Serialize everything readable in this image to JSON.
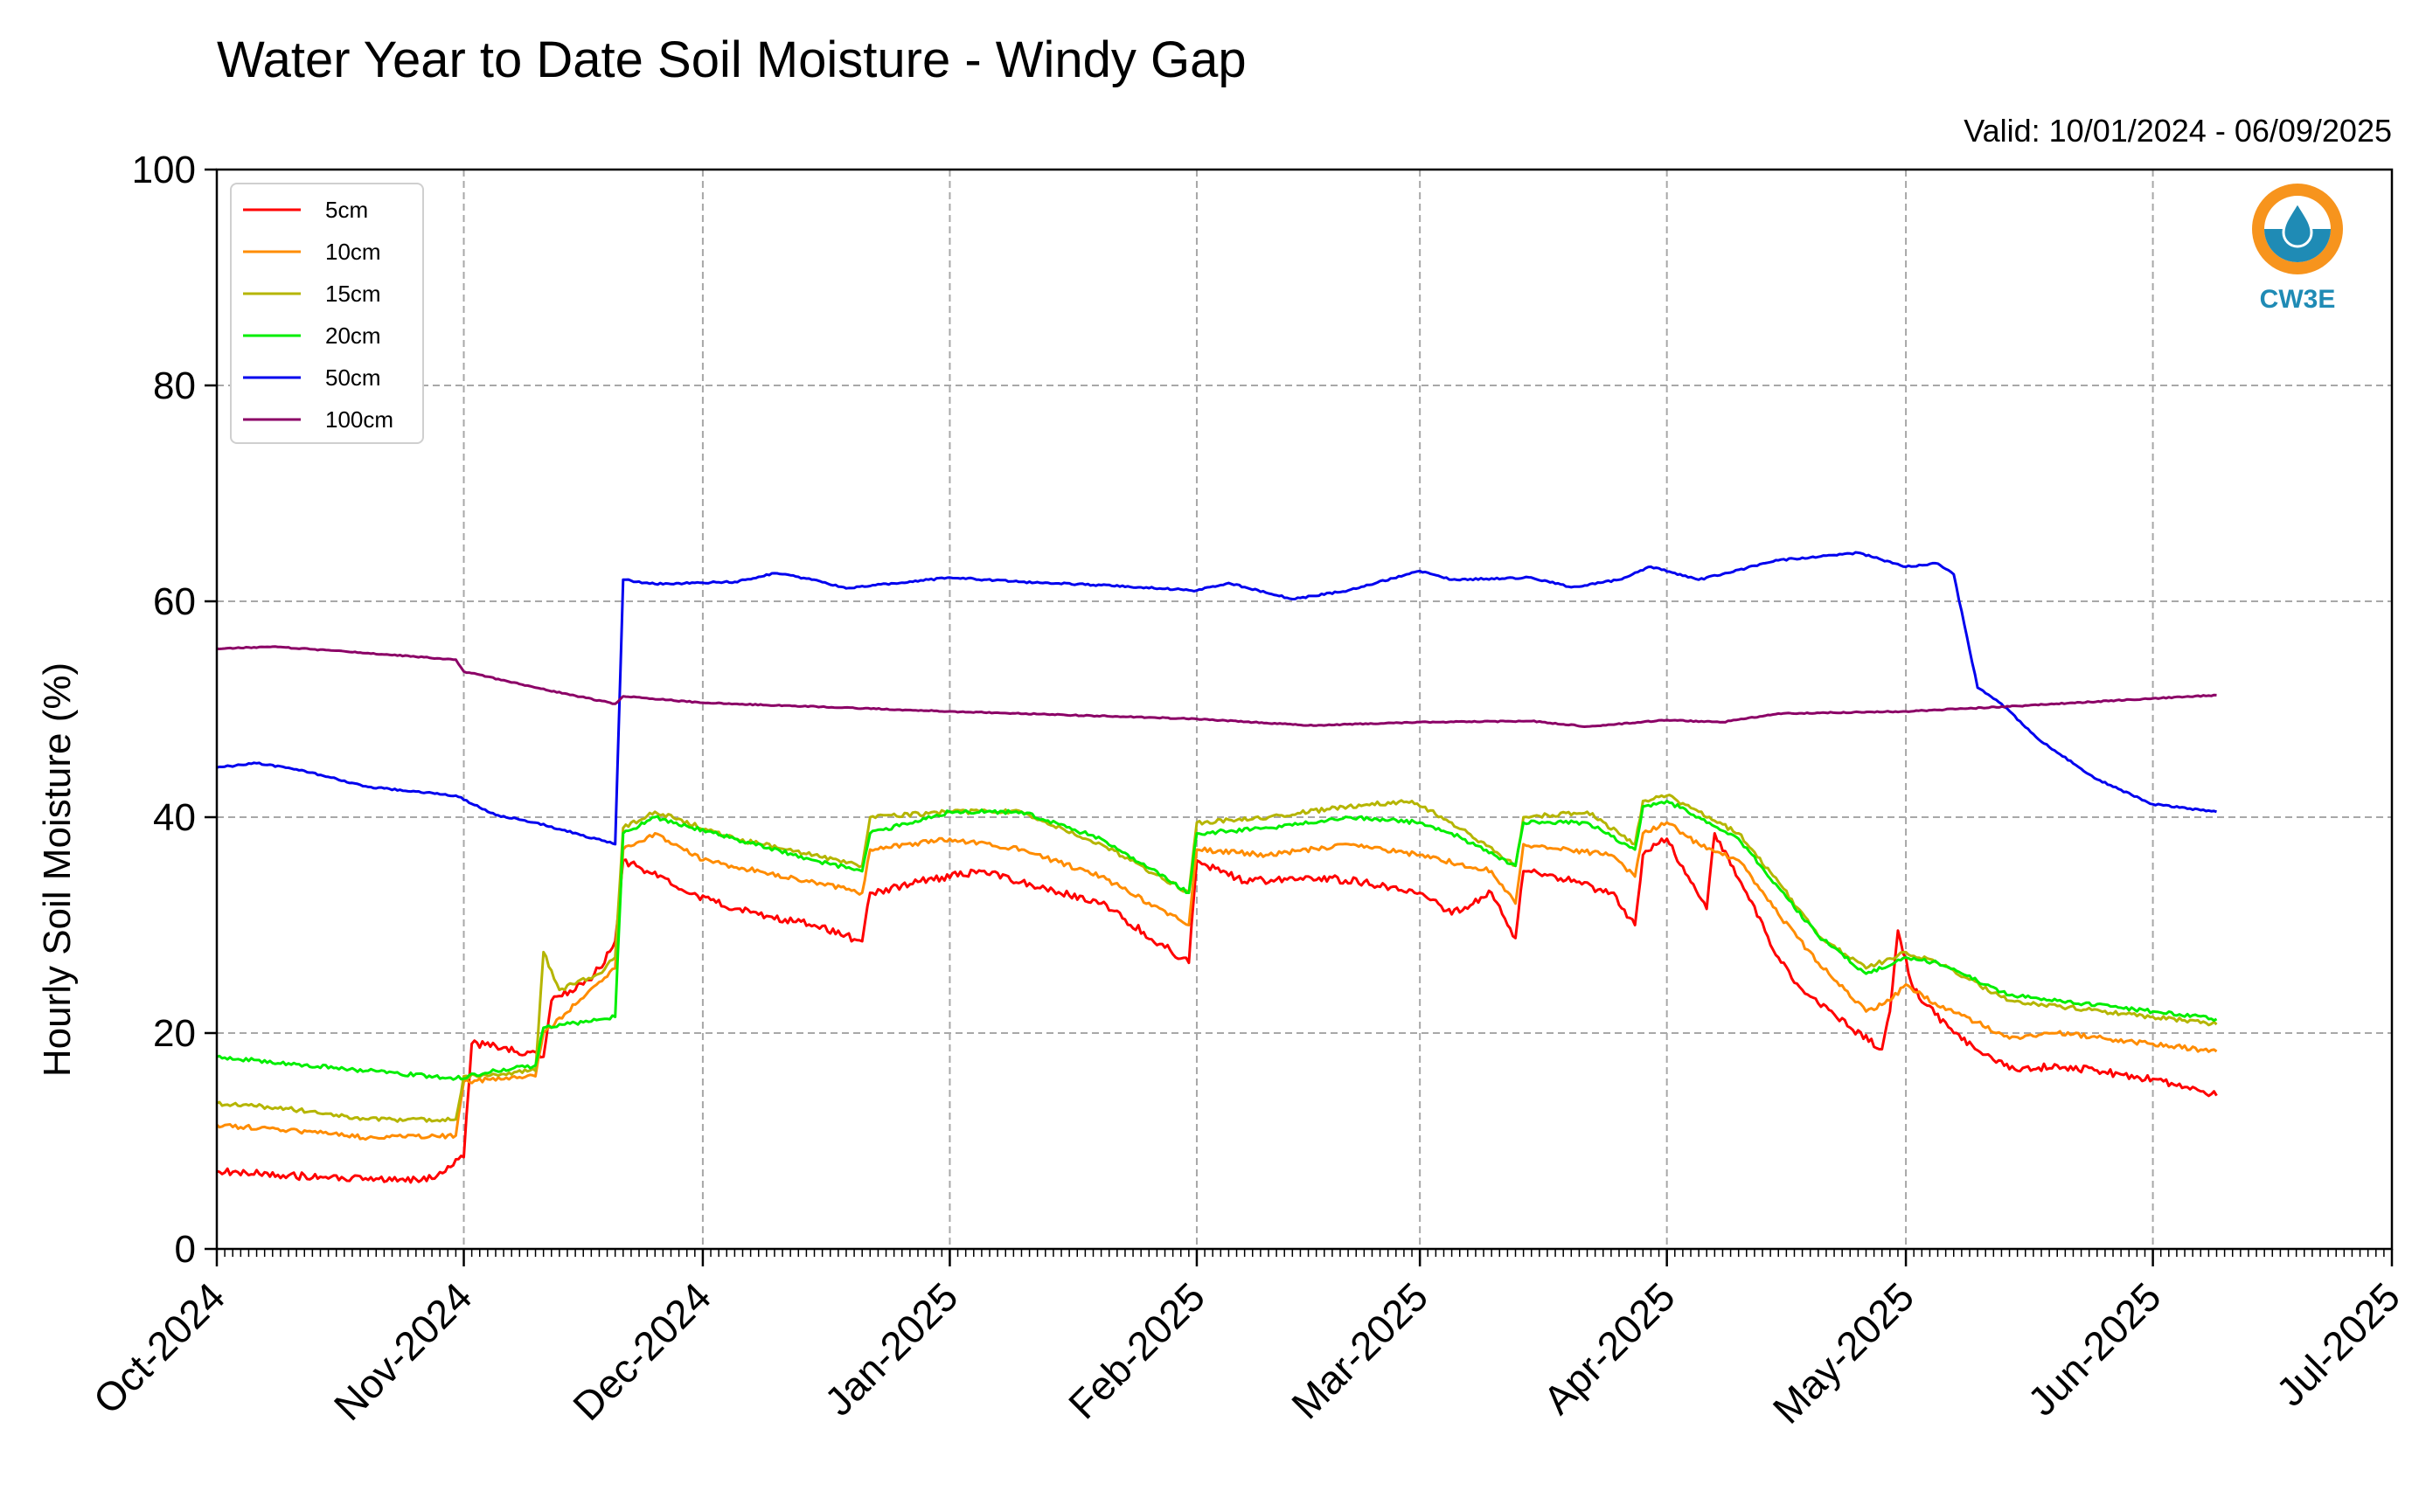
{
  "chart_data": {
    "type": "line",
    "title": "Water Year to Date Soil Moisture - Windy Gap",
    "subtitle": "Valid: 10/01/2024 - 06/09/2025",
    "xlabel": "",
    "ylabel": "Hourly Soil Moisture (%)",
    "ylim": [
      0,
      100
    ],
    "xlim": [
      "2024-10-01",
      "2025-07-01"
    ],
    "y_ticks": [
      0,
      20,
      40,
      60,
      80,
      100
    ],
    "x_tick_labels": [
      "Oct-2024",
      "Nov-2024",
      "Dec-2024",
      "Jan-2025",
      "Feb-2025",
      "Mar-2025",
      "Apr-2025",
      "May-2025",
      "Jun-2025",
      "Jul-2025"
    ],
    "x_tick_dates": [
      "2024-10-01",
      "2024-11-01",
      "2024-12-01",
      "2025-01-01",
      "2025-02-01",
      "2025-03-01",
      "2025-04-01",
      "2025-05-01",
      "2025-06-01",
      "2025-07-01"
    ],
    "grid": true,
    "legend_position": "top-left",
    "logo_text": "CW3E",
    "series": [
      {
        "name": "5cm",
        "color": "#ff0000",
        "points": [
          [
            "2024-10-01",
            7.2
          ],
          [
            "2024-10-10",
            6.8
          ],
          [
            "2024-10-20",
            6.4
          ],
          [
            "2024-10-28",
            6.5
          ],
          [
            "2024-11-01",
            8.5
          ],
          [
            "2024-11-02",
            19
          ],
          [
            "2024-11-05",
            18.8
          ],
          [
            "2024-11-11",
            17.8
          ],
          [
            "2024-11-12",
            23
          ],
          [
            "2024-11-16",
            24.5
          ],
          [
            "2024-11-18",
            26
          ],
          [
            "2024-11-20",
            28.5
          ],
          [
            "2024-11-21",
            36
          ],
          [
            "2024-11-24",
            35
          ],
          [
            "2024-11-29",
            33
          ],
          [
            "2024-12-05",
            31.5
          ],
          [
            "2024-12-15",
            30
          ],
          [
            "2024-12-21",
            28.5
          ],
          [
            "2024-12-22",
            33
          ],
          [
            "2024-12-28",
            34
          ],
          [
            "2025-01-05",
            35
          ],
          [
            "2025-01-10",
            34
          ],
          [
            "2025-01-20",
            32
          ],
          [
            "2025-01-31",
            26.5
          ],
          [
            "2025-02-01",
            36
          ],
          [
            "2025-02-07",
            34
          ],
          [
            "2025-02-15",
            34.5
          ],
          [
            "2025-02-22",
            34
          ],
          [
            "2025-03-01",
            33
          ],
          [
            "2025-03-05",
            31
          ],
          [
            "2025-03-10",
            33
          ],
          [
            "2025-03-12",
            30
          ],
          [
            "2025-03-13",
            28.8
          ],
          [
            "2025-03-14",
            35
          ],
          [
            "2025-03-18",
            34.5
          ],
          [
            "2025-03-25",
            33
          ],
          [
            "2025-03-28",
            30
          ],
          [
            "2025-03-29",
            36.5
          ],
          [
            "2025-04-01",
            38
          ],
          [
            "2025-04-04",
            34
          ],
          [
            "2025-04-06",
            31.5
          ],
          [
            "2025-04-07",
            38.5
          ],
          [
            "2025-04-11",
            33
          ],
          [
            "2025-04-15",
            27
          ],
          [
            "2025-04-18",
            24
          ],
          [
            "2025-04-24",
            20.5
          ],
          [
            "2025-04-28",
            18.5
          ],
          [
            "2025-04-29",
            22
          ],
          [
            "2025-04-30",
            29.5
          ],
          [
            "2025-05-02",
            24
          ],
          [
            "2025-05-07",
            20
          ],
          [
            "2025-05-12",
            17.5
          ],
          [
            "2025-05-15",
            16.5
          ],
          [
            "2025-05-20",
            17
          ],
          [
            "2025-05-30",
            16
          ],
          [
            "2025-06-05",
            15
          ],
          [
            "2025-06-09",
            14.2
          ]
        ]
      },
      {
        "name": "10cm",
        "color": "#ff8c00",
        "points": [
          [
            "2024-10-01",
            11.5
          ],
          [
            "2024-10-10",
            11
          ],
          [
            "2024-10-20",
            10.3
          ],
          [
            "2024-10-31",
            10.5
          ],
          [
            "2024-11-01",
            15.5
          ],
          [
            "2024-11-10",
            16
          ],
          [
            "2024-11-11",
            20
          ],
          [
            "2024-11-20",
            26
          ],
          [
            "2024-11-21",
            37
          ],
          [
            "2024-11-25",
            38.5
          ],
          [
            "2024-12-01",
            36
          ],
          [
            "2024-12-15",
            34
          ],
          [
            "2024-12-21",
            33
          ],
          [
            "2024-12-22",
            37
          ],
          [
            "2025-01-01",
            38
          ],
          [
            "2025-01-10",
            37
          ],
          [
            "2025-01-20",
            34.5
          ],
          [
            "2025-01-31",
            30
          ],
          [
            "2025-02-01",
            37
          ],
          [
            "2025-02-10",
            36.5
          ],
          [
            "2025-02-20",
            37.5
          ],
          [
            "2025-03-01",
            36.5
          ],
          [
            "2025-03-10",
            35
          ],
          [
            "2025-03-13",
            32
          ],
          [
            "2025-03-14",
            37.5
          ],
          [
            "2025-03-25",
            36.5
          ],
          [
            "2025-03-28",
            34.5
          ],
          [
            "2025-03-29",
            38.5
          ],
          [
            "2025-04-01",
            39.5
          ],
          [
            "2025-04-05",
            37.5
          ],
          [
            "2025-04-10",
            36
          ],
          [
            "2025-04-15",
            31
          ],
          [
            "2025-04-20",
            26.5
          ],
          [
            "2025-04-26",
            22
          ],
          [
            "2025-04-29",
            23
          ],
          [
            "2025-05-01",
            24.5
          ],
          [
            "2025-05-05",
            22.5
          ],
          [
            "2025-05-10",
            21
          ],
          [
            "2025-05-14",
            19.5
          ],
          [
            "2025-05-20",
            20
          ],
          [
            "2025-06-01",
            19
          ],
          [
            "2025-06-09",
            18.3
          ]
        ]
      },
      {
        "name": "15cm",
        "color": "#b5b500",
        "points": [
          [
            "2024-10-01",
            13.5
          ],
          [
            "2024-10-10",
            13
          ],
          [
            "2024-10-20",
            12
          ],
          [
            "2024-10-31",
            12
          ],
          [
            "2024-11-01",
            16
          ],
          [
            "2024-11-10",
            16.5
          ],
          [
            "2024-11-11",
            27.5
          ],
          [
            "2024-11-13",
            24
          ],
          [
            "2024-11-18",
            25.5
          ],
          [
            "2024-11-20",
            27
          ],
          [
            "2024-11-21",
            39
          ],
          [
            "2024-11-25",
            40.5
          ],
          [
            "2024-12-05",
            38
          ],
          [
            "2024-12-15",
            36.5
          ],
          [
            "2024-12-21",
            35.5
          ],
          [
            "2024-12-22",
            40
          ],
          [
            "2025-01-01",
            40.5
          ],
          [
            "2025-01-10",
            40.5
          ],
          [
            "2025-01-20",
            37.5
          ],
          [
            "2025-01-31",
            33
          ],
          [
            "2025-02-01",
            39.5
          ],
          [
            "2025-02-10",
            40
          ],
          [
            "2025-02-20",
            41
          ],
          [
            "2025-02-28",
            41.5
          ],
          [
            "2025-03-05",
            39.5
          ],
          [
            "2025-03-13",
            35.5
          ],
          [
            "2025-03-14",
            40
          ],
          [
            "2025-03-22",
            40.5
          ],
          [
            "2025-03-28",
            37.5
          ],
          [
            "2025-03-29",
            41.5
          ],
          [
            "2025-04-01",
            42
          ],
          [
            "2025-04-05",
            40.5
          ],
          [
            "2025-04-10",
            38.5
          ],
          [
            "2025-04-15",
            34
          ],
          [
            "2025-04-20",
            29
          ],
          [
            "2025-04-26",
            26
          ],
          [
            "2025-05-01",
            27.5
          ],
          [
            "2025-05-05",
            26.5
          ],
          [
            "2025-05-14",
            23
          ],
          [
            "2025-05-20",
            22.5
          ],
          [
            "2025-06-01",
            21.5
          ],
          [
            "2025-06-09",
            20.8
          ]
        ]
      },
      {
        "name": "20cm",
        "color": "#00ee00",
        "points": [
          [
            "2024-10-01",
            17.8
          ],
          [
            "2024-10-10",
            17.2
          ],
          [
            "2024-10-20",
            16.5
          ],
          [
            "2024-10-31",
            15.8
          ],
          [
            "2024-11-05",
            16.5
          ],
          [
            "2024-11-10",
            17
          ],
          [
            "2024-11-11",
            20.5
          ],
          [
            "2024-11-16",
            21
          ],
          [
            "2024-11-20",
            21.5
          ],
          [
            "2024-11-21",
            38.5
          ],
          [
            "2024-11-25",
            40
          ],
          [
            "2024-12-05",
            38
          ],
          [
            "2024-12-15",
            36
          ],
          [
            "2024-12-21",
            35
          ],
          [
            "2024-12-22",
            38.5
          ],
          [
            "2025-01-01",
            40.5
          ],
          [
            "2025-01-10",
            40.5
          ],
          [
            "2025-01-20",
            38
          ],
          [
            "2025-01-31",
            33
          ],
          [
            "2025-02-01",
            38.5
          ],
          [
            "2025-02-10",
            39
          ],
          [
            "2025-02-20",
            40
          ],
          [
            "2025-03-01",
            39.5
          ],
          [
            "2025-03-05",
            38.5
          ],
          [
            "2025-03-13",
            35.5
          ],
          [
            "2025-03-14",
            39.5
          ],
          [
            "2025-03-22",
            39.5
          ],
          [
            "2025-03-28",
            37
          ],
          [
            "2025-03-29",
            41
          ],
          [
            "2025-04-01",
            41.5
          ],
          [
            "2025-04-05",
            40
          ],
          [
            "2025-04-10",
            38
          ],
          [
            "2025-04-15",
            33.5
          ],
          [
            "2025-04-20",
            29
          ],
          [
            "2025-04-26",
            25.5
          ],
          [
            "2025-05-01",
            27
          ],
          [
            "2025-05-05",
            26.5
          ],
          [
            "2025-05-14",
            23.5
          ],
          [
            "2025-05-20",
            23
          ],
          [
            "2025-06-01",
            22
          ],
          [
            "2025-06-09",
            21.3
          ]
        ]
      },
      {
        "name": "50cm",
        "color": "#0000ee",
        "points": [
          [
            "2024-10-01",
            44.6
          ],
          [
            "2024-10-06",
            45
          ],
          [
            "2024-10-12",
            44.3
          ],
          [
            "2024-10-20",
            42.8
          ],
          [
            "2024-10-31",
            42
          ],
          [
            "2024-11-05",
            40.2
          ],
          [
            "2024-11-10",
            39.5
          ],
          [
            "2024-11-20",
            37.5
          ],
          [
            "2024-11-21",
            62
          ],
          [
            "2024-11-25",
            61.6
          ],
          [
            "2024-12-05",
            61.8
          ],
          [
            "2024-12-10",
            62.6
          ],
          [
            "2024-12-15",
            62
          ],
          [
            "2024-12-19",
            61.2
          ],
          [
            "2025-01-01",
            62.2
          ],
          [
            "2025-01-10",
            61.8
          ],
          [
            "2025-01-20",
            61.5
          ],
          [
            "2025-02-01",
            61
          ],
          [
            "2025-02-05",
            61.7
          ],
          [
            "2025-02-13",
            60.2
          ],
          [
            "2025-02-20",
            61
          ],
          [
            "2025-03-01",
            62.8
          ],
          [
            "2025-03-05",
            62
          ],
          [
            "2025-03-15",
            62.2
          ],
          [
            "2025-03-20",
            61.3
          ],
          [
            "2025-03-26",
            62
          ],
          [
            "2025-03-30",
            63.2
          ],
          [
            "2025-04-05",
            62
          ],
          [
            "2025-04-15",
            63.8
          ],
          [
            "2025-04-25",
            64.5
          ],
          [
            "2025-05-01",
            63.2
          ],
          [
            "2025-05-05",
            63.5
          ],
          [
            "2025-05-07",
            62.5
          ],
          [
            "2025-05-10",
            52
          ],
          [
            "2025-05-13",
            50.5
          ],
          [
            "2025-05-18",
            47
          ],
          [
            "2025-05-25",
            43.5
          ],
          [
            "2025-06-01",
            41.2
          ],
          [
            "2025-06-09",
            40.5
          ]
        ]
      },
      {
        "name": "100cm",
        "color": "#8b0066",
        "points": [
          [
            "2024-10-01",
            55.6
          ],
          [
            "2024-10-08",
            55.8
          ],
          [
            "2024-10-20",
            55.2
          ],
          [
            "2024-10-31",
            54.6
          ],
          [
            "2024-11-01",
            53.5
          ],
          [
            "2024-11-10",
            52
          ],
          [
            "2024-11-20",
            50.5
          ],
          [
            "2024-11-21",
            51.2
          ],
          [
            "2024-12-01",
            50.6
          ],
          [
            "2025-01-01",
            49.8
          ],
          [
            "2025-02-01",
            49.1
          ],
          [
            "2025-02-15",
            48.5
          ],
          [
            "2025-03-01",
            48.8
          ],
          [
            "2025-03-15",
            48.9
          ],
          [
            "2025-03-22",
            48.4
          ],
          [
            "2025-04-01",
            49
          ],
          [
            "2025-04-08",
            48.8
          ],
          [
            "2025-04-15",
            49.6
          ],
          [
            "2025-05-01",
            49.8
          ],
          [
            "2025-05-15",
            50.3
          ],
          [
            "2025-06-01",
            51
          ],
          [
            "2025-06-09",
            51.3
          ]
        ]
      }
    ]
  }
}
